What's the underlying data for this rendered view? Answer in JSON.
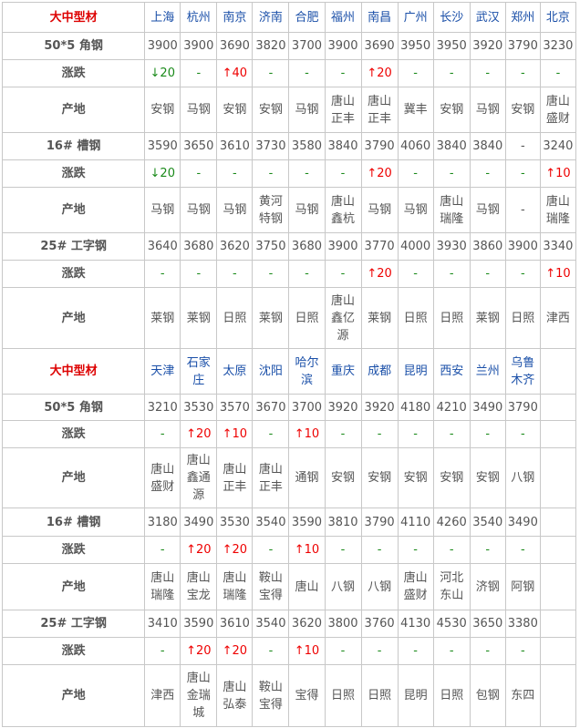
{
  "blocks": [
    {
      "header": {
        "label": "大中型材",
        "cities": [
          "上海",
          "杭州",
          "南京",
          "济南",
          "合肥",
          "福州",
          "南昌",
          "广州",
          "长沙",
          "武汉",
          "郑州",
          "北京"
        ]
      },
      "products": [
        {
          "name": "50*5 角钢",
          "change_label": "涨跌",
          "origin_label": "产地",
          "prices": [
            3900,
            3900,
            3690,
            3820,
            3700,
            3900,
            3690,
            3950,
            3950,
            3920,
            3790,
            3230
          ],
          "changes": [
            "↓20",
            "-",
            "↑40",
            "-",
            "-",
            "-",
            "↑20",
            "-",
            "-",
            "-",
            "-",
            "-"
          ],
          "origins": [
            "安钢",
            "马钢",
            "安钢",
            "安钢",
            "马钢",
            "唐山正丰",
            "唐山正丰",
            "冀丰",
            "安钢",
            "马钢",
            "安钢",
            "唐山盛财"
          ]
        },
        {
          "name": "16# 槽钢",
          "change_label": "涨跌",
          "origin_label": "产地",
          "prices": [
            3590,
            3650,
            3610,
            3730,
            3580,
            3840,
            3790,
            4060,
            3840,
            3840,
            "-",
            3240
          ],
          "changes": [
            "↓20",
            "-",
            "-",
            "-",
            "-",
            "-",
            "↑20",
            "-",
            "-",
            "-",
            "-",
            "↑10"
          ],
          "origins": [
            "马钢",
            "马钢",
            "马钢",
            "黄河特钢",
            "马钢",
            "唐山鑫杭",
            "马钢",
            "马钢",
            "唐山瑞隆",
            "马钢",
            "-",
            "唐山瑞隆"
          ]
        },
        {
          "name": "25# 工字钢",
          "change_label": "涨跌",
          "origin_label": "产地",
          "prices": [
            3640,
            3680,
            3620,
            3750,
            3680,
            3900,
            3770,
            4000,
            3930,
            3860,
            3900,
            3340
          ],
          "changes": [
            "-",
            "-",
            "-",
            "-",
            "-",
            "-",
            "↑20",
            "-",
            "-",
            "-",
            "-",
            "↑10"
          ],
          "origins": [
            "莱钢",
            "莱钢",
            "日照",
            "莱钢",
            "日照",
            "唐山鑫亿源",
            "莱钢",
            "日照",
            "日照",
            "莱钢",
            "日照",
            "津西"
          ]
        }
      ]
    },
    {
      "header": {
        "label": "大中型材",
        "cities": [
          "天津",
          "石家庄",
          "太原",
          "沈阳",
          "哈尔滨",
          "重庆",
          "成都",
          "昆明",
          "西安",
          "兰州",
          "乌鲁木齐"
        ]
      },
      "products": [
        {
          "name": "50*5 角钢",
          "change_label": "涨跌",
          "origin_label": "产地",
          "prices": [
            3210,
            3530,
            3570,
            3670,
            3700,
            3920,
            3920,
            4180,
            4210,
            3490,
            3790
          ],
          "changes": [
            "-",
            "↑20",
            "↑10",
            "-",
            "↑10",
            "-",
            "-",
            "-",
            "-",
            "-",
            "-"
          ],
          "origins": [
            "唐山盛财",
            "唐山鑫通源",
            "唐山正丰",
            "唐山正丰",
            "通钢",
            "安钢",
            "安钢",
            "安钢",
            "安钢",
            "安钢",
            "八钢"
          ]
        },
        {
          "name": "16# 槽钢",
          "change_label": "涨跌",
          "origin_label": "产地",
          "prices": [
            3180,
            3490,
            3530,
            3540,
            3590,
            3810,
            3790,
            4110,
            4260,
            3540,
            3490
          ],
          "changes": [
            "-",
            "↑20",
            "↑20",
            "-",
            "↑10",
            "-",
            "-",
            "-",
            "-",
            "-",
            "-"
          ],
          "origins": [
            "唐山瑞隆",
            "唐山宝龙",
            "唐山瑞隆",
            "鞍山宝得",
            "唐山",
            "八钢",
            "八钢",
            "唐山盛财",
            "河北东山",
            "济钢",
            "阿钢"
          ]
        },
        {
          "name": "25# 工字钢",
          "change_label": "涨跌",
          "origin_label": "产地",
          "prices": [
            3410,
            3590,
            3610,
            3540,
            3620,
            3800,
            3760,
            4130,
            4530,
            3650,
            3380
          ],
          "changes": [
            "-",
            "↑20",
            "↑20",
            "-",
            "↑10",
            "-",
            "-",
            "-",
            "-",
            "-",
            "-"
          ],
          "origins": [
            "津西",
            "唐山金瑞城",
            "唐山弘泰",
            "鞍山宝得",
            "宝得",
            "日照",
            "日照",
            "昆明",
            "日照",
            "包钢",
            "东四"
          ]
        }
      ]
    }
  ]
}
